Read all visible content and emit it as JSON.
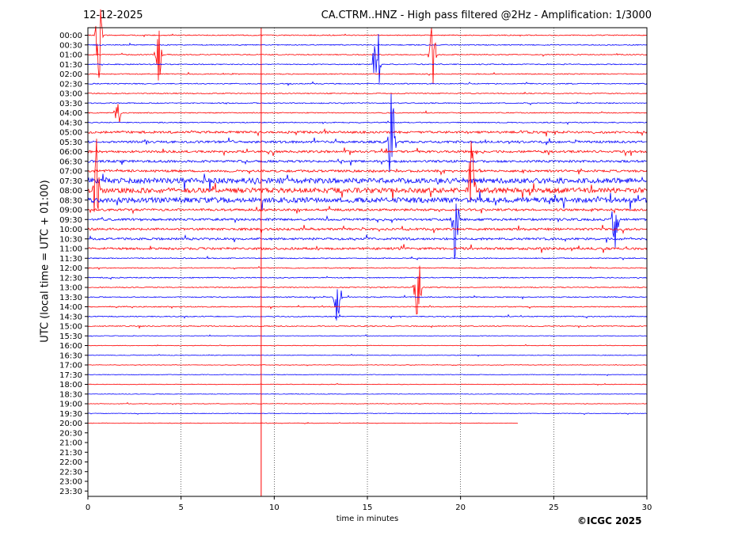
{
  "header": {
    "date": "12-12-2025",
    "title": "CA.CTRM..HNZ - High pass filtered @2Hz - Amplification: 1/3000"
  },
  "footer": {
    "credit": "©ICGC 2025"
  },
  "colors": {
    "red": "#ff0000",
    "blue": "#0000ff",
    "grid": "#000000"
  },
  "chart_data": {
    "type": "line",
    "title": "CA.CTRM..HNZ - High pass filtered @2Hz - Amplification: 1/3000",
    "xlabel": "time in minutes",
    "ylabel": "UTC (local time = UTC + 01:00)",
    "xlim": [
      0,
      30
    ],
    "xticks": [
      0,
      5,
      10,
      15,
      20,
      25,
      30
    ],
    "grid": "vertical dotted at 5-minute ticks",
    "rows": [
      "00:00",
      "00:30",
      "01:00",
      "01:30",
      "02:00",
      "02:30",
      "03:00",
      "03:30",
      "04:00",
      "04:30",
      "05:00",
      "05:30",
      "06:00",
      "06:30",
      "07:00",
      "07:30",
      "08:00",
      "08:30",
      "09:00",
      "09:30",
      "10:00",
      "10:30",
      "11:00",
      "11:30",
      "12:00",
      "12:30",
      "13:00",
      "13:30",
      "14:00",
      "14:30",
      "15:00",
      "15:30",
      "16:00",
      "16:30",
      "17:00",
      "17:30",
      "18:00",
      "18:30",
      "19:00",
      "19:30",
      "20:00",
      "20:30",
      "21:00",
      "21:30",
      "22:00",
      "22:30",
      "23:00",
      "23:30"
    ],
    "row_colors": "alternating red (even rows) and blue (odd rows)",
    "last_trace_row": "20:00",
    "last_trace_end_minute": 23.1,
    "events": [
      {
        "row": "00:00",
        "minute": 0.6,
        "amplitude": 5
      },
      {
        "row": "01:00",
        "minute": 3.8,
        "amplitude": 3
      },
      {
        "row": "01:30",
        "minute": 15.5,
        "amplitude": 6
      },
      {
        "row": "01:00",
        "minute": 18.5,
        "amplitude": 4
      },
      {
        "row": "04:00",
        "minute": 1.6,
        "amplitude": 2
      },
      {
        "row": "05:30",
        "minute": 16.3,
        "amplitude": 6
      },
      {
        "row": "08:00",
        "minute": 0.5,
        "amplitude": 6
      },
      {
        "row": "08:00",
        "minute": 20.6,
        "amplitude": 6
      },
      {
        "row": "09:30",
        "minute": 19.7,
        "amplitude": 5
      },
      {
        "row": "09:30",
        "minute": 28.3,
        "amplitude": 3
      },
      {
        "row": "13:30",
        "minute": 13.4,
        "amplitude": 4
      },
      {
        "row": "13:00",
        "minute": 17.7,
        "amplitude": 4
      }
    ],
    "full_height_line": {
      "minute": 9.3,
      "color": "red"
    }
  }
}
